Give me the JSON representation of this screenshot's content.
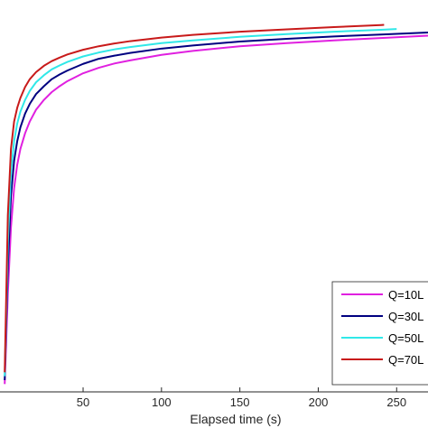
{
  "chart_data": {
    "type": "line",
    "xlabel": "Elapsed time (s)",
    "ylabel": "",
    "xlim": [
      -3,
      270
    ],
    "ylim": [
      0,
      100
    ],
    "x_ticks": [
      50,
      100,
      150,
      200,
      250
    ],
    "x_tick_labels": [
      "50",
      "100",
      "150",
      "200",
      "250"
    ],
    "grid": false,
    "legend_position": "bottom-right",
    "series": [
      {
        "name": "Q=10L",
        "color": "#e020e0",
        "x": [
          0,
          2,
          4,
          6,
          8,
          10,
          13,
          16,
          20,
          25,
          30,
          35,
          40,
          50,
          60,
          70,
          80,
          100,
          120,
          150,
          180,
          210,
          240,
          270
        ],
        "y": [
          2,
          25,
          42,
          52,
          58,
          62,
          66,
          69,
          72,
          74.5,
          76.5,
          78,
          79.3,
          81.3,
          82.7,
          83.8,
          84.6,
          86,
          87,
          88.2,
          89,
          89.7,
          90.3,
          90.9
        ]
      },
      {
        "name": "Q=30L",
        "color": "#000080",
        "x": [
          0,
          2,
          4,
          6,
          8,
          10,
          13,
          16,
          20,
          25,
          30,
          35,
          40,
          50,
          60,
          70,
          80,
          100,
          120,
          150,
          180,
          210,
          240,
          270
        ],
        "y": [
          3,
          32,
          50,
          59,
          64,
          67.5,
          71,
          73.5,
          76,
          78,
          79.8,
          81,
          82,
          83.7,
          85,
          85.8,
          86.5,
          87.6,
          88.4,
          89.4,
          90.1,
          90.7,
          91.2,
          91.7
        ]
      },
      {
        "name": "Q=50L",
        "color": "#30e8e8",
        "x": [
          0,
          2,
          4,
          6,
          8,
          10,
          13,
          16,
          20,
          25,
          30,
          35,
          40,
          50,
          60,
          70,
          80,
          100,
          120,
          150,
          180,
          210,
          240,
          250
        ],
        "y": [
          4,
          38,
          56,
          64,
          68.5,
          71.5,
          74.5,
          76.8,
          79,
          80.8,
          82.3,
          83.3,
          84.2,
          85.6,
          86.6,
          87.4,
          88,
          89,
          89.7,
          90.6,
          91.3,
          91.9,
          92.4,
          92.6
        ]
      },
      {
        "name": "Q=70L",
        "color": "#c81a1a",
        "x": [
          0,
          2,
          4,
          6,
          8,
          10,
          13,
          16,
          20,
          25,
          30,
          35,
          40,
          50,
          60,
          70,
          80,
          100,
          120,
          150,
          180,
          210,
          240,
          242
        ],
        "y": [
          5,
          45,
          62,
          69,
          72.5,
          75,
          77.8,
          79.8,
          81.6,
          83.2,
          84.4,
          85.3,
          86.1,
          87.3,
          88.2,
          88.9,
          89.5,
          90.4,
          91.1,
          91.9,
          92.5,
          93.1,
          93.6,
          93.65
        ]
      }
    ]
  }
}
